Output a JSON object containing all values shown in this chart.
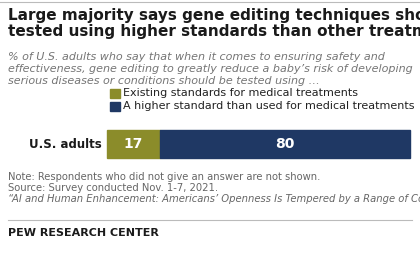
{
  "title_line1": "Large majority says gene editing techniques should be",
  "title_line2": "tested using higher standards than other treatments",
  "subtitle_line1": "% of U.S. adults who say that when it comes to ensuring safety and",
  "subtitle_line2": "effectiveness, gene editing to greatly reduce a baby’s risk of developing",
  "subtitle_line3": "serious diseases or conditions should be tested using …",
  "legend_labels": [
    "Existing standards for medical treatments",
    "A higher standard than used for medical treatments"
  ],
  "legend_colors": [
    "#8b8c2a",
    "#1f3864"
  ],
  "category": "U.S. adults",
  "values": [
    17,
    80
  ],
  "bar_colors": [
    "#8b8c2a",
    "#1f3864"
  ],
  "note_line1": "Note: Respondents who did not give an answer are not shown.",
  "note_line2": "Source: Survey conducted Nov. 1-7, 2021.",
  "note_line3": "“AI and Human Enhancement: Americans’ Openness Is Tempered by a Range of Concerns”",
  "source_label": "PEW RESEARCH CENTER",
  "background_color": "#ffffff",
  "title_fontsize": 11.0,
  "subtitle_fontsize": 8.0,
  "bar_label_fontsize": 10,
  "legend_fontsize": 8.0,
  "note_fontsize": 7.2,
  "pew_fontsize": 8.0
}
